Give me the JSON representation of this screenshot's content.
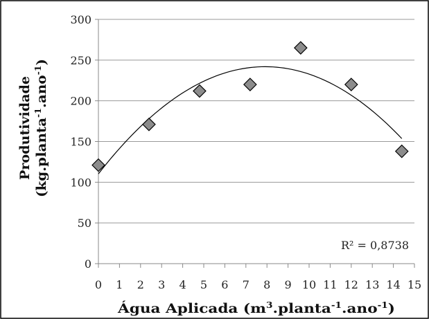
{
  "chart_data": {
    "type": "scatter",
    "title": "",
    "xlabel": {
      "parts": [
        {
          "text": "Água Aplicada (m",
          "sup": false
        },
        {
          "text": "3",
          "sup": true
        },
        {
          "text": ".planta",
          "sup": false
        },
        {
          "text": "-1",
          "sup": true
        },
        {
          "text": ".ano",
          "sup": false
        },
        {
          "text": "-1",
          "sup": true
        },
        {
          "text": ")",
          "sup": false
        }
      ]
    },
    "ylabel": {
      "line1": "Produtividade",
      "line2_parts": [
        {
          "text": "(kg.planta",
          "sup": false
        },
        {
          "text": "-1",
          "sup": true
        },
        {
          "text": ".ano",
          "sup": false
        },
        {
          "text": "-1",
          "sup": true
        },
        {
          "text": ")",
          "sup": false
        }
      ]
    },
    "xlim": [
      0,
      15
    ],
    "ylim": [
      0,
      300
    ],
    "x_ticks": [
      "0",
      "1",
      "2",
      "3",
      "4",
      "5",
      "6",
      "7",
      "8",
      "9",
      "10",
      "11",
      "12",
      "13",
      "14",
      "15"
    ],
    "y_ticks": [
      "0",
      "50",
      "100",
      "150",
      "200",
      "250",
      "300"
    ],
    "grid": "horizontal",
    "points": [
      {
        "x": 0,
        "y": 121
      },
      {
        "x": 2.4,
        "y": 171
      },
      {
        "x": 4.8,
        "y": 212
      },
      {
        "x": 7.2,
        "y": 220
      },
      {
        "x": 9.6,
        "y": 265
      },
      {
        "x": 12,
        "y": 220
      },
      {
        "x": 14.4,
        "y": 138
      }
    ],
    "trendline": {
      "type": "polynomial-2",
      "x_range": [
        0,
        14.4
      ],
      "r_squared_label": "R² = 0,8738"
    },
    "colors": {
      "marker_fill": "#8c8c8c",
      "marker_stroke": "#000000",
      "trendline": "#000000",
      "gridline": "#999999"
    }
  }
}
